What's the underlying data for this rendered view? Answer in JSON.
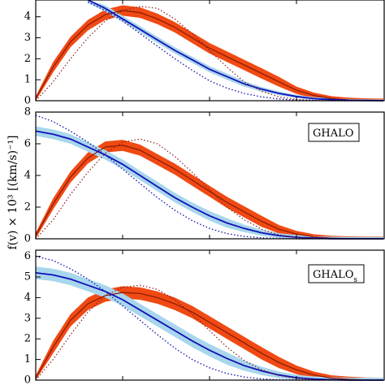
{
  "ylabel": "f(v) × 10³ [(km/s)⁻¹]",
  "colors": {
    "red_band": "#f04a14",
    "red_line": "#8a1a00",
    "blue_band": "#a8d6ec",
    "blue_line": "#1010b8",
    "red_dotted": "#8b1a1a",
    "blue_dotted": "#1a1ab0"
  },
  "chart_data": [
    {
      "type": "line",
      "panel_label": "",
      "ylim": [
        0,
        4.8
      ],
      "yticks": [
        0,
        1,
        2,
        3,
        4
      ],
      "xlim": [
        0,
        1
      ],
      "series": [
        {
          "role": "red_median",
          "x": [
            0,
            0.05,
            0.1,
            0.15,
            0.2,
            0.25,
            0.3,
            0.35,
            0.4,
            0.45,
            0.5,
            0.55,
            0.6,
            0.65,
            0.7,
            0.75,
            0.8,
            0.85,
            0.9,
            0.95,
            1.0
          ],
          "y": [
            0.1,
            1.6,
            2.8,
            3.6,
            4.1,
            4.3,
            4.2,
            3.9,
            3.5,
            3.0,
            2.5,
            2.1,
            1.7,
            1.3,
            0.9,
            0.5,
            0.25,
            0.1,
            0.04,
            0.01,
            0
          ],
          "spread": 0.25
        },
        {
          "role": "blue_median",
          "x": [
            0.15,
            0.2,
            0.25,
            0.3,
            0.35,
            0.4,
            0.45,
            0.5,
            0.55,
            0.6,
            0.65,
            0.7,
            0.75,
            0.8,
            0.85,
            0.9,
            0.95,
            1.0
          ],
          "y": [
            4.8,
            4.4,
            3.9,
            3.4,
            2.9,
            2.4,
            1.95,
            1.5,
            1.15,
            0.8,
            0.55,
            0.35,
            0.2,
            0.1,
            0.05,
            0.02,
            0.01,
            0
          ],
          "spread": 0.15
        },
        {
          "role": "red_dotted",
          "x": [
            0,
            0.05,
            0.1,
            0.15,
            0.2,
            0.25,
            0.3,
            0.35,
            0.4,
            0.45,
            0.5,
            0.55,
            0.6,
            0.65,
            0.7,
            0.75,
            0.8,
            0.85,
            0.9,
            0.95,
            1.0
          ],
          "y": [
            0.0,
            0.9,
            2.0,
            3.0,
            3.8,
            4.3,
            4.5,
            4.4,
            3.9,
            3.2,
            2.4,
            1.6,
            0.9,
            0.45,
            0.18,
            0.06,
            0.02,
            0.005,
            0,
            0,
            0
          ]
        },
        {
          "role": "blue_dotted",
          "x": [
            0.15,
            0.2,
            0.25,
            0.3,
            0.35,
            0.4,
            0.45,
            0.5,
            0.55,
            0.6,
            0.65,
            0.7,
            0.75,
            0.8,
            0.85,
            0.9,
            0.95,
            1.0
          ],
          "y": [
            4.7,
            4.3,
            3.8,
            3.2,
            2.6,
            2.0,
            1.45,
            0.95,
            0.6,
            0.35,
            0.18,
            0.08,
            0.03,
            0.01,
            0,
            0,
            0,
            0
          ]
        }
      ]
    },
    {
      "type": "line",
      "panel_label": "GHALO",
      "ylim": [
        0,
        8
      ],
      "yticks": [
        0,
        2,
        4,
        6,
        8
      ],
      "xlim": [
        0,
        1
      ],
      "series": [
        {
          "role": "red_median",
          "x": [
            0,
            0.05,
            0.1,
            0.15,
            0.2,
            0.25,
            0.3,
            0.35,
            0.4,
            0.45,
            0.5,
            0.55,
            0.6,
            0.65,
            0.7,
            0.75,
            0.8,
            0.85,
            0.9,
            0.95,
            1.0
          ],
          "y": [
            0.2,
            2.2,
            3.9,
            5.1,
            5.8,
            5.9,
            5.6,
            5.0,
            4.4,
            3.7,
            3.0,
            2.3,
            1.7,
            1.1,
            0.6,
            0.3,
            0.12,
            0.04,
            0.01,
            0,
            0
          ],
          "spread": 0.35
        },
        {
          "role": "blue_median",
          "x": [
            0,
            0.05,
            0.1,
            0.15,
            0.2,
            0.25,
            0.3,
            0.35,
            0.4,
            0.45,
            0.5,
            0.55,
            0.6,
            0.65,
            0.7,
            0.75,
            0.8,
            0.85,
            0.9,
            0.95,
            1.0
          ],
          "y": [
            6.8,
            6.6,
            6.3,
            5.8,
            5.3,
            4.7,
            4.0,
            3.3,
            2.6,
            2.0,
            1.45,
            1.0,
            0.65,
            0.38,
            0.2,
            0.1,
            0.04,
            0.01,
            0,
            0,
            0
          ],
          "spread": 0.3
        },
        {
          "role": "red_dotted",
          "x": [
            0,
            0.05,
            0.1,
            0.15,
            0.2,
            0.25,
            0.3,
            0.35,
            0.4,
            0.45,
            0.5,
            0.55,
            0.6,
            0.65,
            0.7,
            0.75,
            0.8,
            0.85,
            0.9,
            0.95,
            1.0
          ],
          "y": [
            0,
            1.2,
            2.8,
            4.2,
            5.4,
            6.1,
            6.3,
            6.0,
            5.2,
            4.2,
            3.1,
            2.0,
            1.2,
            0.6,
            0.25,
            0.08,
            0.02,
            0,
            0,
            0,
            0
          ]
        },
        {
          "role": "blue_dotted",
          "x": [
            0,
            0.05,
            0.1,
            0.15,
            0.2,
            0.25,
            0.3,
            0.35,
            0.4,
            0.45,
            0.5,
            0.55,
            0.6,
            0.65,
            0.7,
            0.75,
            0.8,
            0.85,
            0.9,
            0.95,
            1.0
          ],
          "y": [
            7.8,
            7.4,
            6.8,
            6.1,
            5.3,
            4.4,
            3.5,
            2.6,
            1.8,
            1.15,
            0.65,
            0.33,
            0.15,
            0.06,
            0.02,
            0,
            0,
            0,
            0,
            0,
            0
          ]
        }
      ]
    },
    {
      "type": "line",
      "panel_label": "GHALO",
      "panel_label_sub": "s",
      "ylim": [
        0,
        6.3
      ],
      "yticks": [
        0,
        1,
        2,
        3,
        4,
        5,
        6
      ],
      "xlim": [
        0,
        1
      ],
      "series": [
        {
          "role": "red_median",
          "x": [
            0,
            0.05,
            0.1,
            0.15,
            0.2,
            0.25,
            0.3,
            0.35,
            0.4,
            0.45,
            0.5,
            0.55,
            0.6,
            0.65,
            0.7,
            0.75,
            0.8,
            0.85,
            0.9,
            0.95,
            1.0
          ],
          "y": [
            0.1,
            1.6,
            2.9,
            3.7,
            4.1,
            4.25,
            4.2,
            4.0,
            3.7,
            3.3,
            2.8,
            2.3,
            1.8,
            1.3,
            0.85,
            0.5,
            0.25,
            0.1,
            0.04,
            0.01,
            0
          ],
          "spread": 0.3
        },
        {
          "role": "blue_median",
          "x": [
            0,
            0.05,
            0.1,
            0.15,
            0.2,
            0.25,
            0.3,
            0.35,
            0.4,
            0.45,
            0.5,
            0.55,
            0.6,
            0.65,
            0.7,
            0.75,
            0.8,
            0.85,
            0.9,
            0.95,
            1.0
          ],
          "y": [
            5.2,
            5.1,
            4.9,
            4.6,
            4.3,
            3.9,
            3.4,
            2.9,
            2.4,
            1.9,
            1.45,
            1.05,
            0.7,
            0.45,
            0.25,
            0.12,
            0.05,
            0.02,
            0,
            0,
            0
          ],
          "spread": 0.3
        },
        {
          "role": "red_dotted",
          "x": [
            0,
            0.05,
            0.1,
            0.15,
            0.2,
            0.25,
            0.3,
            0.35,
            0.4,
            0.45,
            0.5,
            0.55,
            0.6,
            0.65,
            0.7,
            0.75,
            0.8,
            0.85,
            0.9,
            0.95,
            1.0
          ],
          "y": [
            0,
            1.0,
            2.2,
            3.3,
            4.1,
            4.5,
            4.6,
            4.4,
            3.9,
            3.2,
            2.4,
            1.6,
            0.95,
            0.5,
            0.22,
            0.08,
            0.02,
            0,
            0,
            0,
            0
          ]
        },
        {
          "role": "blue_dotted",
          "x": [
            0,
            0.05,
            0.1,
            0.15,
            0.2,
            0.25,
            0.3,
            0.35,
            0.4,
            0.45,
            0.5,
            0.55,
            0.6,
            0.65,
            0.7,
            0.75,
            0.8,
            0.85,
            0.9,
            0.95,
            1.0
          ],
          "y": [
            6.0,
            5.8,
            5.4,
            4.9,
            4.3,
            3.6,
            2.9,
            2.2,
            1.55,
            1.0,
            0.6,
            0.32,
            0.15,
            0.06,
            0.02,
            0,
            0,
            0,
            0,
            0,
            0
          ]
        }
      ]
    }
  ]
}
